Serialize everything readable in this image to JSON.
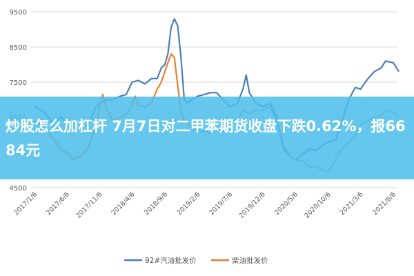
{
  "banner": {
    "headline": "炒股怎么加杠杆 7月7日对二甲苯期货收盘下跌0.62%，报6684元",
    "color": "#4cbeea"
  },
  "chart_data": {
    "type": "line",
    "x_tick_labels": [
      "2017/1/6",
      "2017/6/6",
      "2017/11/6",
      "2018/4/6",
      "2018/9/6",
      "2019/2/6",
      "2019/7/6",
      "2019/12/6",
      "2020/5/6",
      "2020/10/6",
      "2021/3/6",
      "2021/8/6"
    ],
    "ylim": [
      4500,
      9500
    ],
    "y_ticks": [
      4500,
      5500,
      6500,
      7500,
      8500,
      9500
    ],
    "grid": true,
    "legend_position": "bottom",
    "series": [
      {
        "name": "92#汽油批发价",
        "color": "#4a7ebb",
        "points": [
          [
            "2017/1/6",
            6800
          ],
          [
            "2017/2/20",
            6650
          ],
          [
            "2017/4/1",
            6350
          ],
          [
            "2017/5/10",
            6500
          ],
          [
            "2017/6/6",
            6300
          ],
          [
            "2017/7/5",
            6100
          ],
          [
            "2017/8/10",
            6200
          ],
          [
            "2017/9/15",
            6300
          ],
          [
            "2017/10/20",
            6800
          ],
          [
            "2017/11/6",
            6900
          ],
          [
            "2017/12/10",
            7000
          ],
          [
            "2018/1/5",
            7000
          ],
          [
            "2018/2/10",
            7100
          ],
          [
            "2018/3/10",
            7150
          ],
          [
            "2018/4/6",
            7500
          ],
          [
            "2018/5/5",
            7550
          ],
          [
            "2018/6/5",
            7450
          ],
          [
            "2018/7/5",
            7600
          ],
          [
            "2018/8/1",
            7600
          ],
          [
            "2018/8/20",
            7900
          ],
          [
            "2018/9/6",
            8000
          ],
          [
            "2018/9/20",
            8300
          ],
          [
            "2018/10/5",
            9050
          ],
          [
            "2018/10/20",
            9300
          ],
          [
            "2018/11/5",
            9100
          ],
          [
            "2018/11/20",
            8200
          ],
          [
            "2018/12/5",
            7000
          ],
          [
            "2018/12/20",
            6900
          ],
          [
            "2019/1/10",
            7000
          ],
          [
            "2019/2/6",
            7100
          ],
          [
            "2019/3/10",
            7150
          ],
          [
            "2019/4/5",
            7200
          ],
          [
            "2019/5/5",
            7200
          ],
          [
            "2019/6/5",
            7000
          ],
          [
            "2019/7/6",
            6800
          ],
          [
            "2019/8/10",
            6900
          ],
          [
            "2019/9/5",
            7300
          ],
          [
            "2019/9/20",
            7700
          ],
          [
            "2019/10/5",
            7200
          ],
          [
            "2019/11/5",
            6900
          ],
          [
            "2019/12/6",
            6800
          ],
          [
            "2020/1/10",
            6900
          ],
          [
            "2020/2/10",
            6500
          ],
          [
            "2020/3/10",
            5700
          ],
          [
            "2020/4/10",
            5400
          ],
          [
            "2020/5/6",
            5300
          ],
          [
            "2020/6/10",
            5450
          ],
          [
            "2020/7/10",
            5600
          ],
          [
            "2020/8/10",
            5550
          ],
          [
            "2020/9/10",
            5700
          ],
          [
            "2020/10/6",
            5800
          ],
          [
            "2020/11/10",
            5850
          ],
          [
            "2020/12/10",
            6400
          ],
          [
            "2021/1/10",
            7000
          ],
          [
            "2021/2/10",
            7350
          ],
          [
            "2021/3/6",
            7300
          ],
          [
            "2021/4/10",
            7600
          ],
          [
            "2021/5/10",
            7800
          ],
          [
            "2021/6/10",
            7900
          ],
          [
            "2021/7/1",
            8100
          ],
          [
            "2021/8/6",
            8050
          ],
          [
            "2021/9/1",
            7800
          ]
        ]
      },
      {
        "name": "柴油批发价",
        "color": "#ed7d31",
        "points": [
          [
            "2017/1/6",
            6400
          ],
          [
            "2017/2/20",
            6250
          ],
          [
            "2017/4/1",
            5900
          ],
          [
            "2017/5/10",
            5600
          ],
          [
            "2017/6/6",
            5500
          ],
          [
            "2017/7/5",
            5300
          ],
          [
            "2017/8/10",
            5400
          ],
          [
            "2017/9/15",
            5650
          ],
          [
            "2017/10/20",
            6300
          ],
          [
            "2017/11/6",
            6800
          ],
          [
            "2017/11/20",
            7150
          ],
          [
            "2017/12/10",
            6700
          ],
          [
            "2018/1/5",
            6400
          ],
          [
            "2018/2/10",
            6500
          ],
          [
            "2018/3/10",
            6600
          ],
          [
            "2018/4/6",
            6850
          ],
          [
            "2018/4/20",
            7100
          ],
          [
            "2018/5/5",
            6850
          ],
          [
            "2018/6/5",
            6800
          ],
          [
            "2018/7/5",
            6900
          ],
          [
            "2018/8/1",
            7300
          ],
          [
            "2018/8/20",
            7500
          ],
          [
            "2018/9/6",
            7800
          ],
          [
            "2018/9/20",
            8050
          ],
          [
            "2018/10/5",
            8300
          ],
          [
            "2018/10/20",
            8200
          ],
          [
            "2018/11/5",
            7400
          ],
          [
            "2018/11/20",
            6700
          ],
          [
            "2018/12/5",
            6400
          ],
          [
            "2019/1/10",
            6200
          ],
          [
            "2019/2/6",
            6100
          ]
        ]
      },
      {
        "name": "",
        "color": "#a6a6a6",
        "points": [
          [
            "2019/2/6",
            6100
          ],
          [
            "2019/3/10",
            6100
          ],
          [
            "2019/4/5",
            6050
          ],
          [
            "2019/5/5",
            6200
          ],
          [
            "2019/6/5",
            6100
          ],
          [
            "2019/7/6",
            6300
          ],
          [
            "2019/8/10",
            6400
          ],
          [
            "2019/9/5",
            6700
          ],
          [
            "2019/10/5",
            6600
          ],
          [
            "2019/11/5",
            6700
          ],
          [
            "2019/12/6",
            6700
          ],
          [
            "2020/1/10",
            6800
          ],
          [
            "2020/2/10",
            6400
          ],
          [
            "2020/3/10",
            5600
          ],
          [
            "2020/4/10",
            5400
          ],
          [
            "2020/5/6",
            5300
          ],
          [
            "2020/6/10",
            5250
          ],
          [
            "2020/7/10",
            5100
          ],
          [
            "2020/8/10",
            5100
          ],
          [
            "2020/9/10",
            5000
          ],
          [
            "2020/10/6",
            4950
          ],
          [
            "2020/11/10",
            5300
          ],
          [
            "2020/12/10",
            5600
          ],
          [
            "2021/1/10",
            5800
          ],
          [
            "2021/2/10",
            6000
          ],
          [
            "2021/3/6",
            6300
          ],
          [
            "2021/4/10",
            6400
          ],
          [
            "2021/5/10",
            6500
          ],
          [
            "2021/6/10",
            6550
          ],
          [
            "2021/7/1",
            6700
          ],
          [
            "2021/8/6",
            6650
          ],
          [
            "2021/9/1",
            6500
          ]
        ]
      }
    ]
  }
}
